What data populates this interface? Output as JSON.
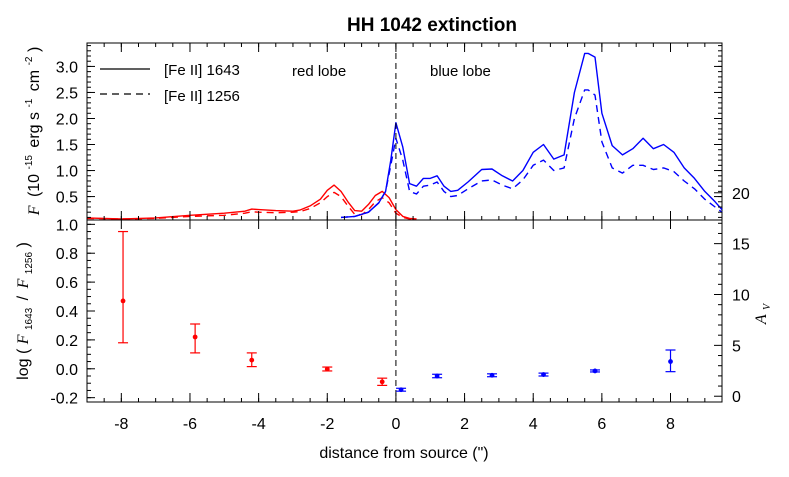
{
  "figure": {
    "title": "HH 1042 extinction"
  },
  "chart_data": [
    {
      "type": "line",
      "panel": "top",
      "xlim": [
        -9,
        9.5
      ],
      "ylim": [
        0.05,
        3.45
      ],
      "ylabel_prefix": "F",
      "ylabel_rest": "(10",
      "ylabel_exp": "-15",
      "ylabel_units": "erg s",
      "ylabel_exp2": "-1",
      "ylabel_units2": "cm",
      "ylabel_exp3": "-2",
      "ylabel_close": ")",
      "yticks": [
        0.5,
        1.0,
        1.5,
        2.0,
        2.5,
        3.0
      ],
      "ytick_labels": [
        "0.5",
        "1.0",
        "1.5",
        "2.0",
        "2.5",
        "3.0"
      ],
      "legend": {
        "placement": "top-left",
        "entries": [
          "[Fe II] 1643",
          "[Fe II] 1256"
        ]
      },
      "annotations": [
        {
          "text": "red lobe",
          "color": "#ff0000"
        },
        {
          "text": "blue lobe",
          "color": "#0000ff"
        }
      ],
      "vline_x": 0,
      "series": [
        {
          "name": "[Fe II] 1643",
          "lobe": "red",
          "style": "solid",
          "color": "#ff0000",
          "x": [
            -9,
            -8,
            -7,
            -6,
            -5,
            -4.4,
            -4.2,
            -4,
            -3.5,
            -3,
            -2.8,
            -2.5,
            -2.2,
            -2,
            -1.8,
            -1.6,
            -1.4,
            -1.2,
            -1,
            -0.8,
            -0.6,
            -0.4,
            -0.2,
            0,
            0.2,
            0.4,
            0.6
          ],
          "y": [
            0.09,
            0.07,
            0.09,
            0.14,
            0.18,
            0.22,
            0.26,
            0.25,
            0.23,
            0.22,
            0.24,
            0.32,
            0.45,
            0.62,
            0.72,
            0.6,
            0.4,
            0.23,
            0.22,
            0.35,
            0.52,
            0.6,
            0.48,
            0.25,
            0.12,
            0.08,
            0.07
          ]
        },
        {
          "name": "[Fe II] 1256",
          "lobe": "red",
          "style": "dashed",
          "color": "#ff0000",
          "x": [
            -9,
            -8,
            -7,
            -6,
            -5,
            -4.4,
            -4.2,
            -4,
            -3.5,
            -3,
            -2.8,
            -2.5,
            -2.2,
            -2,
            -1.8,
            -1.6,
            -1.4,
            -1.2,
            -1,
            -0.8,
            -0.6,
            -0.4,
            -0.2,
            0,
            0.2,
            0.4,
            0.6
          ],
          "y": [
            0.08,
            0.07,
            0.08,
            0.12,
            0.14,
            0.18,
            0.21,
            0.2,
            0.19,
            0.2,
            0.21,
            0.27,
            0.38,
            0.5,
            0.58,
            0.5,
            0.32,
            0.16,
            0.15,
            0.25,
            0.4,
            0.48,
            0.38,
            0.18,
            0.1,
            0.07,
            0.07
          ]
        },
        {
          "name": "[Fe II] 1643",
          "lobe": "blue",
          "style": "solid",
          "color": "#0000ff",
          "x": [
            -1.6,
            -1.2,
            -0.8,
            -0.5,
            -0.3,
            -0.15,
            0,
            0.2,
            0.4,
            0.6,
            0.8,
            1.0,
            1.2,
            1.4,
            1.6,
            1.8,
            2.1,
            2.5,
            2.8,
            3.1,
            3.4,
            3.7,
            4.0,
            4.3,
            4.6,
            4.9,
            5.2,
            5.5,
            5.6,
            5.8,
            6.0,
            6.3,
            6.6,
            6.9,
            7.2,
            7.5,
            7.8,
            8.1,
            8.4,
            8.7,
            9.0,
            9.3,
            9.5
          ],
          "y": [
            0.1,
            0.12,
            0.2,
            0.38,
            0.6,
            1.2,
            1.92,
            1.45,
            0.75,
            0.7,
            0.85,
            0.85,
            0.9,
            0.7,
            0.6,
            0.62,
            0.78,
            1.02,
            1.03,
            0.9,
            0.8,
            1.0,
            1.35,
            1.5,
            1.22,
            1.3,
            2.5,
            3.25,
            3.25,
            3.18,
            2.1,
            1.48,
            1.3,
            1.42,
            1.62,
            1.42,
            1.5,
            1.35,
            1.05,
            0.85,
            0.6,
            0.4,
            0.25
          ]
        },
        {
          "name": "[Fe II] 1256",
          "lobe": "blue",
          "style": "dashed",
          "color": "#0000ff",
          "x": [
            -1.6,
            -1.2,
            -0.8,
            -0.5,
            -0.3,
            -0.15,
            0,
            0.2,
            0.4,
            0.6,
            0.8,
            1.0,
            1.2,
            1.4,
            1.6,
            1.8,
            2.1,
            2.5,
            2.8,
            3.1,
            3.4,
            3.7,
            4.0,
            4.3,
            4.6,
            4.9,
            5.2,
            5.5,
            5.6,
            5.8,
            6.0,
            6.3,
            6.6,
            6.9,
            7.2,
            7.5,
            7.8,
            8.1,
            8.4,
            8.7,
            9.0,
            9.3,
            9.5
          ],
          "y": [
            0.1,
            0.12,
            0.2,
            0.38,
            0.6,
            1.1,
            1.62,
            1.2,
            0.6,
            0.55,
            0.7,
            0.72,
            0.78,
            0.6,
            0.5,
            0.52,
            0.65,
            0.8,
            0.82,
            0.72,
            0.65,
            0.82,
            1.1,
            1.2,
            1.0,
            1.05,
            2.0,
            2.55,
            2.55,
            2.45,
            1.55,
            1.05,
            0.95,
            1.1,
            1.1,
            1.02,
            1.05,
            0.98,
            0.8,
            0.65,
            0.45,
            0.3,
            0.2
          ]
        }
      ]
    },
    {
      "type": "scatter",
      "panel": "bottom",
      "xlim": [
        -9,
        9.5
      ],
      "ylim": [
        -0.23,
        1.03
      ],
      "xlabel": "distance from source (\")",
      "ylabel_log": "log (",
      "ylabel_f1": "F",
      "ylabel_s1": "1643",
      "ylabel_slash": "/",
      "ylabel_f2": "F",
      "ylabel_s2": "1256",
      "ylabel_close": ")",
      "y2label": "A",
      "y2label_sub": "V",
      "xticks": [
        -8,
        -6,
        -4,
        -2,
        0,
        2,
        4,
        6,
        8
      ],
      "xtick_labels": [
        "-8",
        "-6",
        "-4",
        "-2",
        "0",
        "2",
        "4",
        "6",
        "8"
      ],
      "yticks": [
        -0.2,
        0.0,
        0.2,
        0.4,
        0.6,
        0.8,
        1.0
      ],
      "ytick_labels": [
        "-0.2",
        "0.0",
        "0.2",
        "0.4",
        "0.6",
        "0.8",
        "1.0"
      ],
      "y2ticks": [
        0,
        5,
        10,
        15,
        20
      ],
      "y2tick_labels": [
        "0",
        "5",
        "10",
        "15",
        "20"
      ],
      "av_per_logratio": 14.2,
      "av_offset_logratio": -0.19,
      "vline_x": 0,
      "points": [
        {
          "x": -7.95,
          "y": 0.47,
          "lo": 0.18,
          "hi": 0.95,
          "color": "#ff0000"
        },
        {
          "x": -5.85,
          "y": 0.22,
          "lo": 0.11,
          "hi": 0.31,
          "color": "#ff0000"
        },
        {
          "x": -4.2,
          "y": 0.06,
          "lo": 0.015,
          "hi": 0.11,
          "color": "#ff0000"
        },
        {
          "x": -2.0,
          "y": -0.002,
          "lo": -0.015,
          "hi": 0.012,
          "color": "#ff0000"
        },
        {
          "x": -0.4,
          "y": -0.09,
          "lo": -0.115,
          "hi": -0.065,
          "color": "#ff0000"
        },
        {
          "x": 0.15,
          "y": -0.145,
          "lo": -0.155,
          "hi": -0.135,
          "color": "#0000ff"
        },
        {
          "x": 1.2,
          "y": -0.05,
          "lo": -0.062,
          "hi": -0.038,
          "color": "#0000ff"
        },
        {
          "x": 2.8,
          "y": -0.045,
          "lo": -0.055,
          "hi": -0.035,
          "color": "#0000ff"
        },
        {
          "x": 4.3,
          "y": -0.04,
          "lo": -0.05,
          "hi": -0.03,
          "color": "#0000ff"
        },
        {
          "x": 5.8,
          "y": -0.015,
          "lo": -0.022,
          "hi": -0.008,
          "color": "#0000ff"
        },
        {
          "x": 8.0,
          "y": 0.05,
          "lo": -0.02,
          "hi": 0.13,
          "color": "#0000ff"
        }
      ]
    }
  ]
}
